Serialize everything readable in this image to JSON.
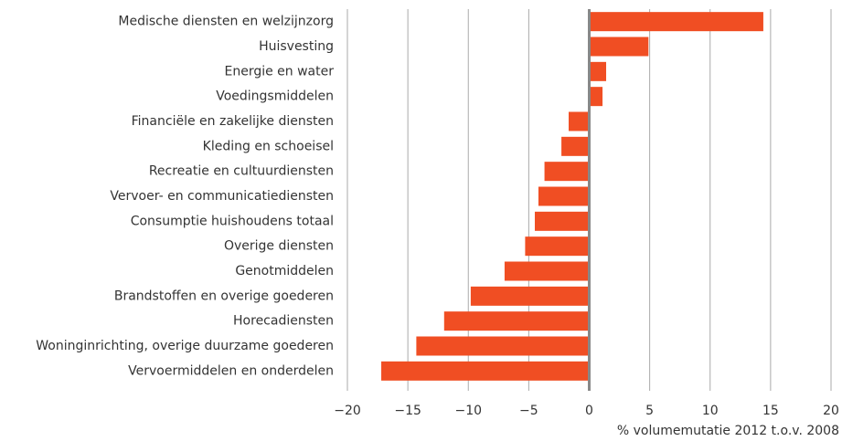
{
  "chart_data": {
    "type": "barh",
    "x_label": "% volumemutatie 2012 t.o.v. 2008",
    "categories": [
      "Medische diensten en welzijnzorg",
      "Huisvesting",
      "Energie en water",
      "Voedingsmiddelen",
      "Financiële en zakelijke diensten",
      "Kleding en schoeisel",
      "Recreatie en cultuurdiensten",
      "Vervoer- en communicatiediensten",
      "Consumptie huishoudens totaal",
      "Overige diensten",
      "Genotmiddelen",
      "Brandstoffen en overige goederen",
      "Horecadiensten",
      "Woninginrichting, overige duurzame goederen",
      "Vervoermiddelen en onderdelen"
    ],
    "values": [
      14.4,
      4.9,
      1.4,
      1.1,
      -1.7,
      -2.3,
      -3.7,
      -4.2,
      -4.5,
      -5.3,
      -7.0,
      -9.8,
      -12.0,
      -14.3,
      -17.2
    ],
    "color": "#f04e23",
    "xlim": [
      -20,
      20
    ],
    "xticks": [
      {
        "value": -20,
        "label": "−20"
      },
      {
        "value": -15,
        "label": "−15"
      },
      {
        "value": -10,
        "label": "−10"
      },
      {
        "value": -5,
        "label": "−5"
      },
      0,
      5,
      10,
      15,
      20
    ],
    "grid": true
  }
}
